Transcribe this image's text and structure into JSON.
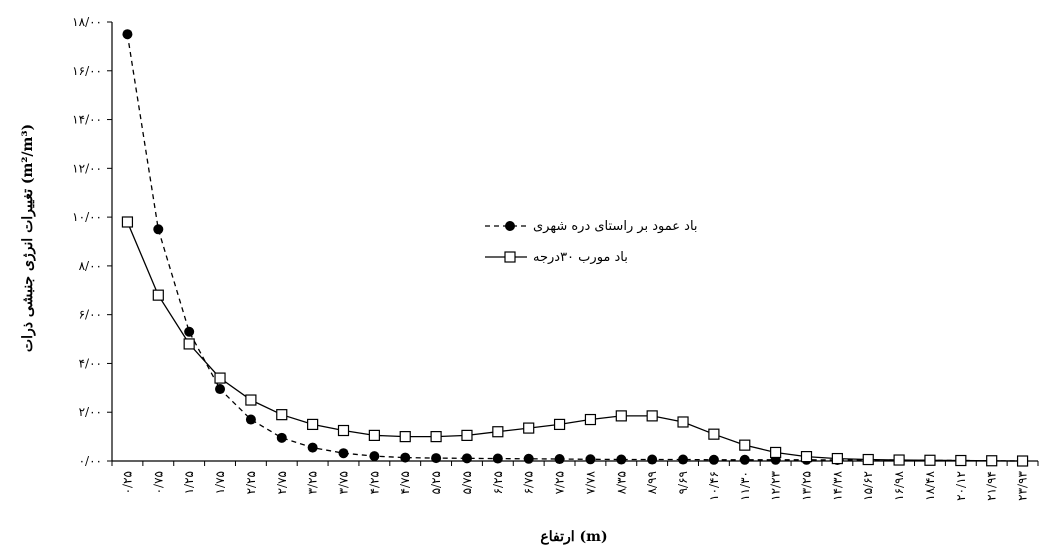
{
  "chart_data": {
    "type": "line",
    "xlabel": "ارتفاع (m)",
    "ylabel": "تغییرات انرژی جنبشی ذرات (m²/m³)",
    "ylim": [
      0,
      18
    ],
    "y_ticks": [
      0,
      2,
      4,
      6,
      8,
      10,
      12,
      14,
      16,
      18
    ],
    "y_tick_labels": [
      "۰/۰۰",
      "۲/۰۰",
      "۴/۰۰",
      "۶/۰۰",
      "۸/۰۰",
      "۱۰/۰۰",
      "۱۲/۰۰",
      "۱۴/۰۰",
      "۱۶/۰۰",
      "۱۸/۰۰"
    ],
    "categories": [
      "۰/۲۵",
      "۰/۷۵",
      "۱/۲۵",
      "۱/۷۵",
      "۲/۲۵",
      "۲/۷۵",
      "۳/۲۵",
      "۳/۷۵",
      "۴/۲۵",
      "۴/۷۵",
      "۵/۲۵",
      "۵/۷۵",
      "۶/۲۵",
      "۶/۷۵",
      "۷/۲۵",
      "۷/۷۸",
      "۸/۳۵",
      "۸/۹۹",
      "۹/۶۹",
      "۱۰/۴۶",
      "۱۱/۳۰",
      "۱۲/۲۳",
      "۱۳/۲۵",
      "۱۴/۳۸",
      "۱۵/۶۲",
      "۱۶/۹۸",
      "۱۸/۴۸",
      "۲۰/۱۲",
      "۲۱/۹۴",
      "۲۳/۹۳"
    ],
    "grid": false,
    "legend_position": "center-right",
    "series": [
      {
        "name": "باد عمود بر راستای دره شهری",
        "marker": "filled-circle",
        "line_style": "dashed",
        "color": "#000000",
        "values": [
          17.5,
          9.5,
          5.3,
          2.95,
          1.7,
          0.95,
          0.55,
          0.32,
          0.2,
          0.14,
          0.12,
          0.11,
          0.1,
          0.09,
          0.08,
          0.07,
          0.06,
          0.06,
          0.06,
          0.05,
          0.05,
          0.05,
          0.05,
          0.04,
          0.04,
          0.03,
          0.03,
          0.02,
          0.01,
          0.0
        ]
      },
      {
        "name": "باد مورب ۳۰درجه",
        "marker": "open-square",
        "line_style": "solid",
        "color": "#000000",
        "values": [
          9.8,
          6.8,
          4.8,
          3.4,
          2.5,
          1.9,
          1.5,
          1.25,
          1.05,
          1.0,
          1.0,
          1.05,
          1.2,
          1.35,
          1.5,
          1.7,
          1.85,
          1.85,
          1.6,
          1.1,
          0.65,
          0.35,
          0.18,
          0.1,
          0.06,
          0.04,
          0.03,
          0.02,
          0.01,
          0.0
        ]
      }
    ]
  }
}
